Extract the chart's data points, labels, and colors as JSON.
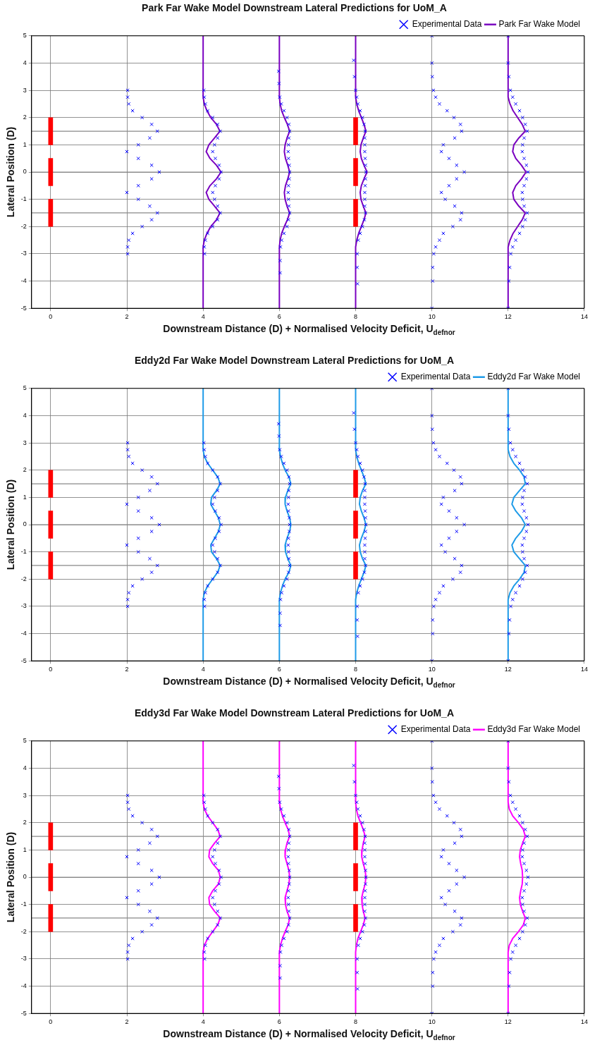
{
  "chart_data": [
    {
      "type": "scatter",
      "title": "Park Far Wake Model Downstream Lateral Predictions for UoM_A",
      "xlabel": "Downstream Distance (D) + Normalised Velocity Deficit, U$_{defnor}$",
      "ylabel": "Lateral Position (D)",
      "xlim": [
        -0.5,
        14
      ],
      "ylim": [
        -5,
        5
      ],
      "xticks": [
        0,
        2,
        4,
        6,
        8,
        10,
        12,
        14
      ],
      "yticks": [
        -5,
        -4,
        -3,
        -2,
        -1,
        0,
        1,
        2,
        3,
        4,
        5
      ],
      "grid": true,
      "legend": "top right",
      "ref_lines": [
        {
          "axis": "y",
          "value": 1.5,
          "color": "#888888"
        },
        {
          "axis": "y",
          "value": 0,
          "color": "#888888"
        },
        {
          "axis": "y",
          "value": -1.5,
          "color": "#888888"
        }
      ],
      "series": [
        {
          "type": "bar",
          "color": "#ff0000",
          "x": [
            0,
            8
          ],
          "base": [
            -2,
            -2
          ],
          "values": [
            1,
            1
          ]
        },
        {
          "type": "bar",
          "color": "#ff0000",
          "x": [
            0,
            8
          ],
          "base": [
            -0.5,
            -0.5
          ],
          "values": [
            1,
            1
          ]
        },
        {
          "type": "bar",
          "color": "#ff0000",
          "x": [
            0,
            8
          ],
          "base": [
            1,
            1
          ],
          "values": [
            1,
            1
          ]
        },
        {
          "name": "Experimental Data",
          "color": "#0000ff",
          "marker": "cross",
          "x": [
            2.02,
            2.02,
            2.05,
            2.15,
            2.4,
            2.65,
            2.8,
            2.6,
            2.3,
            2.0,
            2.3,
            2.65,
            2.85,
            2.65,
            2.3,
            2.0,
            2.3,
            2.6,
            2.8,
            2.65,
            2.4,
            2.15,
            2.05,
            2.02,
            2.02,
            4.02,
            4.03,
            4.06,
            4.12,
            4.25,
            4.38,
            4.45,
            4.38,
            4.3,
            4.25,
            4.32,
            4.42,
            4.47,
            4.42,
            4.32,
            4.25,
            4.3,
            4.38,
            4.45,
            4.38,
            4.25,
            4.12,
            4.06,
            4.03,
            4.04,
            5.98,
            5.99,
            6.01,
            6.05,
            6.12,
            6.2,
            6.25,
            6.27,
            6.25,
            6.24,
            6.23,
            6.24,
            6.26,
            6.27,
            6.26,
            6.24,
            6.23,
            6.24,
            6.25,
            6.27,
            6.24,
            6.2,
            6.12,
            6.06,
            6.03,
            6.02,
            6.02,
            7.95,
            7.97,
            8.0,
            8.03,
            8.06,
            8.12,
            8.18,
            8.22,
            8.25,
            8.24,
            8.24,
            8.24,
            8.25,
            8.26,
            8.27,
            8.26,
            8.25,
            8.24,
            8.24,
            8.24,
            8.26,
            8.23,
            8.18,
            8.12,
            8.07,
            8.04,
            8.04,
            8.05,
            10.0,
            10.0,
            10.01,
            10.04,
            10.1,
            10.2,
            10.4,
            10.58,
            10.75,
            10.78,
            10.6,
            10.3,
            10.25,
            10.45,
            10.65,
            10.85,
            10.65,
            10.45,
            10.25,
            10.35,
            10.6,
            10.78,
            10.75,
            10.55,
            10.3,
            10.2,
            10.1,
            10.05,
            10.02,
            10.02,
            10.0,
            12.0,
            12.0,
            12.02,
            12.06,
            12.12,
            12.2,
            12.3,
            12.38,
            12.45,
            12.5,
            12.42,
            12.38,
            12.37,
            12.42,
            12.48,
            12.52,
            12.48,
            12.42,
            12.37,
            12.38,
            12.42,
            12.5,
            12.45,
            12.38,
            12.3,
            12.2,
            12.12,
            12.07,
            12.04,
            12.02,
            12.0
          ],
          "values": [
            3,
            2.75,
            2.5,
            2.25,
            2,
            1.75,
            1.5,
            1.25,
            1,
            0.75,
            0.5,
            0.25,
            0,
            -0.25,
            -0.5,
            -0.75,
            -1,
            -1.25,
            -1.5,
            -1.75,
            -2,
            -2.25,
            -2.5,
            -2.75,
            -3,
            3,
            2.75,
            2.5,
            2.25,
            2,
            1.75,
            1.5,
            1.25,
            1,
            0.75,
            0.5,
            0.25,
            0,
            -0.25,
            -0.5,
            -0.75,
            -1,
            -1.25,
            -1.5,
            -1.75,
            -2,
            -2.25,
            -2.5,
            -2.75,
            -3,
            3.7,
            3.25,
            2.75,
            2.5,
            2.25,
            2,
            1.75,
            1.5,
            1.25,
            1,
            0.75,
            0.5,
            0.25,
            0,
            -0.25,
            -0.5,
            -0.75,
            -1,
            -1.25,
            -1.5,
            -1.75,
            -2,
            -2.25,
            -2.5,
            -2.75,
            -3.25,
            -3.7,
            4.1,
            3.5,
            3,
            2.75,
            2.5,
            2.25,
            2,
            1.75,
            1.5,
            1.25,
            1,
            0.75,
            0.5,
            0.25,
            0,
            -0.25,
            -0.5,
            -0.75,
            -1,
            -1.25,
            -1.5,
            -1.75,
            -2,
            -2.25,
            -2.5,
            -3,
            -3.5,
            -4.1,
            5,
            4,
            3.5,
            3,
            2.75,
            2.5,
            2.25,
            2,
            1.75,
            1.5,
            1.25,
            1,
            0.75,
            0.5,
            0.25,
            0,
            -0.25,
            -0.5,
            -0.75,
            -1,
            -1.25,
            -1.5,
            -1.75,
            -2,
            -2.25,
            -2.5,
            -2.75,
            -3,
            -3.5,
            -4,
            -5,
            5,
            4,
            3.5,
            3,
            2.75,
            2.5,
            2.25,
            2,
            1.75,
            1.5,
            1.25,
            1,
            0.75,
            0.5,
            0.25,
            0,
            -0.25,
            -0.5,
            -0.75,
            -1,
            -1.25,
            -1.5,
            -1.75,
            -2,
            -2.25,
            -2.5,
            -2.75,
            -3,
            -3.5,
            -4,
            -5
          ]
        },
        {
          "type": "line",
          "name": "Park Far Wake Model",
          "color": "#7a00c0",
          "marker": "none",
          "x": [
            4,
            4,
            4.03,
            4.1,
            4.2,
            4.35,
            4.44,
            4.3,
            4.15,
            4.08,
            4.18,
            4.35,
            4.47,
            4.35,
            4.18,
            4.08,
            4.15,
            4.3,
            4.44,
            4.35,
            4.2,
            4.1,
            4.03,
            4,
            4
          ],
          "values": [
            5,
            2.75,
            2.5,
            2.25,
            2,
            1.75,
            1.5,
            1.25,
            1,
            0.75,
            0.5,
            0.25,
            0,
            -0.25,
            -0.5,
            -0.75,
            -1,
            -1.25,
            -1.5,
            -1.75,
            -2,
            -2.25,
            -2.5,
            -2.75,
            -5
          ]
        },
        {
          "type": "line",
          "color": "#7a00c0",
          "marker": "none",
          "x": [
            6,
            6,
            6.02,
            6.06,
            6.13,
            6.21,
            6.27,
            6.2,
            6.15,
            6.13,
            6.16,
            6.22,
            6.27,
            6.22,
            6.16,
            6.13,
            6.15,
            6.2,
            6.27,
            6.21,
            6.13,
            6.06,
            6.02,
            6,
            6
          ],
          "values": [
            5,
            2.75,
            2.5,
            2.25,
            2,
            1.75,
            1.5,
            1.25,
            1,
            0.75,
            0.5,
            0.25,
            0,
            -0.25,
            -0.5,
            -0.75,
            -1,
            -1.25,
            -1.5,
            -1.75,
            -2,
            -2.25,
            -2.5,
            -2.75,
            -5
          ]
        },
        {
          "type": "line",
          "color": "#7a00c0",
          "marker": "none",
          "x": [
            8,
            8,
            8.03,
            8.08,
            8.15,
            8.22,
            8.27,
            8.2,
            8.14,
            8.12,
            8.15,
            8.22,
            8.3,
            8.22,
            8.15,
            8.12,
            8.14,
            8.2,
            8.27,
            8.22,
            8.15,
            8.08,
            8.03,
            8,
            8
          ],
          "values": [
            5,
            2.75,
            2.5,
            2.25,
            2,
            1.75,
            1.5,
            1.25,
            1,
            0.75,
            0.5,
            0.25,
            0,
            -0.25,
            -0.5,
            -0.75,
            -1,
            -1.25,
            -1.5,
            -1.75,
            -2,
            -2.25,
            -2.5,
            -2.75,
            -5
          ]
        },
        {
          "type": "line",
          "color": "#7a00c0",
          "marker": "none",
          "x": [
            12,
            12,
            12.05,
            12.13,
            12.25,
            12.37,
            12.45,
            12.28,
            12.15,
            12.12,
            12.2,
            12.35,
            12.47,
            12.35,
            12.2,
            12.12,
            12.15,
            12.28,
            12.45,
            12.37,
            12.25,
            12.13,
            12.05,
            12,
            12
          ],
          "values": [
            5,
            2.75,
            2.5,
            2.25,
            2,
            1.75,
            1.5,
            1.25,
            1,
            0.75,
            0.5,
            0.25,
            0,
            -0.25,
            -0.5,
            -0.75,
            -1,
            -1.25,
            -1.5,
            -1.75,
            -2,
            -2.25,
            -2.5,
            -2.75,
            -5
          ]
        }
      ]
    },
    {
      "type": "scatter",
      "title": "Eddy2d Far Wake Model Downstream Lateral Predictions for UoM_A",
      "xlabel": "Downstream Distance (D) + Normalised Velocity Deficit, U$_{defnor}$",
      "ylabel": "Lateral Position (D)",
      "xlim": [
        -0.5,
        14
      ],
      "ylim": [
        -5,
        5
      ],
      "xticks": [
        0,
        2,
        4,
        6,
        8,
        10,
        12,
        14
      ],
      "yticks": [
        -5,
        -4,
        -3,
        -2,
        -1,
        0,
        1,
        2,
        3,
        4,
        5
      ],
      "grid": true,
      "legend": "top right",
      "ref_lines": [
        {
          "axis": "y",
          "value": 1.5,
          "color": "#888888"
        },
        {
          "axis": "y",
          "value": 0,
          "color": "#888888"
        },
        {
          "axis": "y",
          "value": -1.5,
          "color": "#888888"
        }
      ],
      "series": [
        {
          "type": "bar",
          "color": "#ff0000",
          "x": [
            0,
            8
          ],
          "base": [
            -2,
            -2
          ],
          "values": [
            1,
            1
          ]
        },
        {
          "type": "bar",
          "color": "#ff0000",
          "x": [
            0,
            8
          ],
          "base": [
            -0.5,
            -0.5
          ],
          "values": [
            1,
            1
          ]
        },
        {
          "type": "bar",
          "color": "#ff0000",
          "x": [
            0,
            8
          ],
          "base": [
            1,
            1
          ],
          "values": [
            1,
            1
          ]
        },
        {
          "name": "Experimental Data",
          "color": "#0000ff",
          "marker": "cross",
          "x": [
            2.02,
            2.02,
            2.05,
            2.15,
            2.4,
            2.65,
            2.8,
            2.6,
            2.3,
            2.0,
            2.3,
            2.65,
            2.85,
            2.65,
            2.3,
            2.0,
            2.3,
            2.6,
            2.8,
            2.65,
            2.4,
            2.15,
            2.05,
            2.02,
            2.02,
            4.02,
            4.03,
            4.06,
            4.12,
            4.25,
            4.38,
            4.45,
            4.38,
            4.3,
            4.25,
            4.32,
            4.42,
            4.47,
            4.42,
            4.32,
            4.25,
            4.3,
            4.38,
            4.45,
            4.38,
            4.25,
            4.12,
            4.06,
            4.03,
            4.04,
            5.98,
            5.99,
            6.01,
            6.05,
            6.12,
            6.2,
            6.25,
            6.27,
            6.25,
            6.24,
            6.23,
            6.24,
            6.26,
            6.27,
            6.26,
            6.24,
            6.23,
            6.24,
            6.25,
            6.27,
            6.24,
            6.2,
            6.12,
            6.06,
            6.03,
            6.02,
            6.02,
            7.95,
            7.97,
            8.0,
            8.03,
            8.06,
            8.12,
            8.18,
            8.22,
            8.25,
            8.24,
            8.24,
            8.24,
            8.25,
            8.26,
            8.27,
            8.26,
            8.25,
            8.24,
            8.24,
            8.24,
            8.26,
            8.23,
            8.18,
            8.12,
            8.07,
            8.04,
            8.04,
            8.05,
            10.0,
            10.0,
            10.01,
            10.04,
            10.1,
            10.2,
            10.4,
            10.58,
            10.75,
            10.78,
            10.6,
            10.3,
            10.25,
            10.45,
            10.65,
            10.85,
            10.65,
            10.45,
            10.25,
            10.35,
            10.6,
            10.78,
            10.75,
            10.55,
            10.3,
            10.2,
            10.1,
            10.05,
            10.02,
            10.02,
            10.0,
            12.0,
            12.0,
            12.02,
            12.06,
            12.12,
            12.2,
            12.3,
            12.38,
            12.45,
            12.5,
            12.42,
            12.38,
            12.37,
            12.42,
            12.48,
            12.52,
            12.48,
            12.42,
            12.37,
            12.38,
            12.42,
            12.5,
            12.45,
            12.38,
            12.3,
            12.2,
            12.12,
            12.07,
            12.04,
            12.02,
            12.0
          ],
          "values": [
            3,
            2.75,
            2.5,
            2.25,
            2,
            1.75,
            1.5,
            1.25,
            1,
            0.75,
            0.5,
            0.25,
            0,
            -0.25,
            -0.5,
            -0.75,
            -1,
            -1.25,
            -1.5,
            -1.75,
            -2,
            -2.25,
            -2.5,
            -2.75,
            -3,
            3,
            2.75,
            2.5,
            2.25,
            2,
            1.75,
            1.5,
            1.25,
            1,
            0.75,
            0.5,
            0.25,
            0,
            -0.25,
            -0.5,
            -0.75,
            -1,
            -1.25,
            -1.5,
            -1.75,
            -2,
            -2.25,
            -2.5,
            -2.75,
            -3,
            3.7,
            3.25,
            2.75,
            2.5,
            2.25,
            2,
            1.75,
            1.5,
            1.25,
            1,
            0.75,
            0.5,
            0.25,
            0,
            -0.25,
            -0.5,
            -0.75,
            -1,
            -1.25,
            -1.5,
            -1.75,
            -2,
            -2.25,
            -2.5,
            -2.75,
            -3.25,
            -3.7,
            4.1,
            3.5,
            3,
            2.75,
            2.5,
            2.25,
            2,
            1.75,
            1.5,
            1.25,
            1,
            0.75,
            0.5,
            0.25,
            0,
            -0.25,
            -0.5,
            -0.75,
            -1,
            -1.25,
            -1.5,
            -1.75,
            -2,
            -2.25,
            -2.5,
            -3,
            -3.5,
            -4.1,
            5,
            4,
            3.5,
            3,
            2.75,
            2.5,
            2.25,
            2,
            1.75,
            1.5,
            1.25,
            1,
            0.75,
            0.5,
            0.25,
            0,
            -0.25,
            -0.5,
            -0.75,
            -1,
            -1.25,
            -1.5,
            -1.75,
            -2,
            -2.25,
            -2.5,
            -2.75,
            -3,
            -3.5,
            -4,
            -5,
            5,
            4,
            3.5,
            3,
            2.75,
            2.5,
            2.25,
            2,
            1.75,
            1.5,
            1.25,
            1,
            0.75,
            0.5,
            0.25,
            0,
            -0.25,
            -0.5,
            -0.75,
            -1,
            -1.25,
            -1.5,
            -1.75,
            -2,
            -2.25,
            -2.5,
            -2.75,
            -3,
            -3.5,
            -4,
            -5
          ]
        },
        {
          "type": "line",
          "name": "Eddy2d Far Wake Model",
          "color": "#1e9be8",
          "marker": "none",
          "x": [
            4,
            4,
            4.03,
            4.12,
            4.25,
            4.38,
            4.45,
            4.35,
            4.22,
            4.2,
            4.3,
            4.4,
            4.45,
            4.4,
            4.3,
            4.2,
            4.22,
            4.35,
            4.45,
            4.38,
            4.25,
            4.12,
            4.03,
            4,
            4
          ],
          "values": [
            5,
            2.75,
            2.5,
            2.25,
            2,
            1.75,
            1.5,
            1.25,
            1,
            0.75,
            0.5,
            0.25,
            0,
            -0.25,
            -0.5,
            -0.75,
            -1,
            -1.25,
            -1.5,
            -1.75,
            -2,
            -2.25,
            -2.5,
            -2.75,
            -5
          ]
        },
        {
          "type": "line",
          "color": "#1e9be8",
          "marker": "none",
          "x": [
            6,
            6,
            6.03,
            6.08,
            6.15,
            6.25,
            6.3,
            6.22,
            6.16,
            6.15,
            6.2,
            6.27,
            6.3,
            6.27,
            6.2,
            6.15,
            6.16,
            6.22,
            6.3,
            6.25,
            6.15,
            6.08,
            6.03,
            6,
            6
          ],
          "values": [
            5,
            2.75,
            2.5,
            2.25,
            2,
            1.75,
            1.5,
            1.25,
            1,
            0.75,
            0.5,
            0.25,
            0,
            -0.25,
            -0.5,
            -0.75,
            -1,
            -1.25,
            -1.5,
            -1.75,
            -2,
            -2.25,
            -2.5,
            -2.75,
            -5
          ]
        },
        {
          "type": "line",
          "color": "#1e9be8",
          "marker": "none",
          "x": [
            8,
            8,
            8.03,
            8.08,
            8.15,
            8.22,
            8.27,
            8.18,
            8.12,
            8.1,
            8.15,
            8.22,
            8.27,
            8.22,
            8.15,
            8.1,
            8.12,
            8.18,
            8.27,
            8.22,
            8.15,
            8.08,
            8.03,
            8,
            8
          ],
          "values": [
            5,
            2.75,
            2.5,
            2.25,
            2,
            1.75,
            1.5,
            1.25,
            1,
            0.75,
            0.5,
            0.25,
            0,
            -0.25,
            -0.5,
            -0.75,
            -1,
            -1.25,
            -1.5,
            -1.75,
            -2,
            -2.25,
            -2.5,
            -2.75,
            -5
          ]
        },
        {
          "type": "line",
          "color": "#1e9be8",
          "marker": "none",
          "x": [
            12,
            12,
            12.05,
            12.15,
            12.3,
            12.42,
            12.45,
            12.3,
            12.15,
            12.1,
            12.2,
            12.35,
            12.45,
            12.35,
            12.2,
            12.1,
            12.15,
            12.3,
            12.45,
            12.42,
            12.3,
            12.15,
            12.05,
            12,
            12
          ],
          "values": [
            5,
            2.75,
            2.5,
            2.25,
            2,
            1.75,
            1.5,
            1.25,
            1,
            0.75,
            0.5,
            0.25,
            0,
            -0.25,
            -0.5,
            -0.75,
            -1,
            -1.25,
            -1.5,
            -1.75,
            -2,
            -2.25,
            -2.5,
            -2.75,
            -5
          ]
        }
      ]
    },
    {
      "type": "scatter",
      "title": "Eddy3d Far Wake Model Downstream Lateral Predictions for UoM_A",
      "xlabel": "Downstream Distance (D) + Normalised Velocity Deficit, U$_{defnor}$",
      "ylabel": "Lateral Position (D)",
      "xlim": [
        -0.5,
        14
      ],
      "ylim": [
        -5,
        5
      ],
      "xticks": [
        0,
        2,
        4,
        6,
        8,
        10,
        12,
        14
      ],
      "yticks": [
        -5,
        -4,
        -3,
        -2,
        -1,
        0,
        1,
        2,
        3,
        4,
        5
      ],
      "grid": true,
      "legend": "top right",
      "ref_lines": [
        {
          "axis": "y",
          "value": 1.5,
          "color": "#888888"
        },
        {
          "axis": "y",
          "value": 0,
          "color": "#888888"
        },
        {
          "axis": "y",
          "value": -1.5,
          "color": "#888888"
        }
      ],
      "series": [
        {
          "type": "bar",
          "color": "#ff0000",
          "x": [
            0,
            8
          ],
          "base": [
            -2,
            -2
          ],
          "values": [
            1,
            1
          ]
        },
        {
          "type": "bar",
          "color": "#ff0000",
          "x": [
            0,
            8
          ],
          "base": [
            -0.5,
            -0.5
          ],
          "values": [
            1,
            1
          ]
        },
        {
          "type": "bar",
          "color": "#ff0000",
          "x": [
            0,
            8
          ],
          "base": [
            1,
            1
          ],
          "values": [
            1,
            1
          ]
        },
        {
          "name": "Experimental Data",
          "color": "#0000ff",
          "marker": "cross",
          "x": [
            2.02,
            2.02,
            2.05,
            2.15,
            2.4,
            2.65,
            2.8,
            2.6,
            2.3,
            2.0,
            2.3,
            2.65,
            2.85,
            2.65,
            2.3,
            2.0,
            2.3,
            2.6,
            2.8,
            2.65,
            2.4,
            2.15,
            2.05,
            2.02,
            2.02,
            4.02,
            4.03,
            4.06,
            4.12,
            4.25,
            4.38,
            4.45,
            4.38,
            4.3,
            4.25,
            4.32,
            4.42,
            4.47,
            4.42,
            4.32,
            4.25,
            4.3,
            4.38,
            4.45,
            4.38,
            4.25,
            4.12,
            4.06,
            4.03,
            4.04,
            5.98,
            5.99,
            6.01,
            6.05,
            6.12,
            6.2,
            6.25,
            6.27,
            6.25,
            6.24,
            6.23,
            6.24,
            6.26,
            6.27,
            6.26,
            6.24,
            6.23,
            6.24,
            6.25,
            6.27,
            6.24,
            6.2,
            6.12,
            6.06,
            6.03,
            6.02,
            6.02,
            7.95,
            7.97,
            8.0,
            8.03,
            8.06,
            8.12,
            8.18,
            8.22,
            8.25,
            8.24,
            8.24,
            8.24,
            8.25,
            8.26,
            8.27,
            8.26,
            8.25,
            8.24,
            8.24,
            8.24,
            8.26,
            8.23,
            8.18,
            8.12,
            8.07,
            8.04,
            8.04,
            8.05,
            10.0,
            10.0,
            10.01,
            10.04,
            10.1,
            10.2,
            10.4,
            10.58,
            10.75,
            10.78,
            10.6,
            10.3,
            10.25,
            10.45,
            10.65,
            10.85,
            10.65,
            10.45,
            10.25,
            10.35,
            10.6,
            10.78,
            10.75,
            10.55,
            10.3,
            10.2,
            10.1,
            10.05,
            10.02,
            10.02,
            10.0,
            12.0,
            12.0,
            12.02,
            12.06,
            12.12,
            12.2,
            12.3,
            12.38,
            12.45,
            12.5,
            12.42,
            12.38,
            12.37,
            12.42,
            12.48,
            12.52,
            12.48,
            12.42,
            12.37,
            12.38,
            12.42,
            12.5,
            12.45,
            12.38,
            12.3,
            12.2,
            12.12,
            12.07,
            12.04,
            12.02,
            12.0
          ],
          "values": [
            3,
            2.75,
            2.5,
            2.25,
            2,
            1.75,
            1.5,
            1.25,
            1,
            0.75,
            0.5,
            0.25,
            0,
            -0.25,
            -0.5,
            -0.75,
            -1,
            -1.25,
            -1.5,
            -1.75,
            -2,
            -2.25,
            -2.5,
            -2.75,
            -3,
            3,
            2.75,
            2.5,
            2.25,
            2,
            1.75,
            1.5,
            1.25,
            1,
            0.75,
            0.5,
            0.25,
            0,
            -0.25,
            -0.5,
            -0.75,
            -1,
            -1.25,
            -1.5,
            -1.75,
            -2,
            -2.25,
            -2.5,
            -2.75,
            -3,
            3.7,
            3.25,
            2.75,
            2.5,
            2.25,
            2,
            1.75,
            1.5,
            1.25,
            1,
            0.75,
            0.5,
            0.25,
            0,
            -0.25,
            -0.5,
            -0.75,
            -1,
            -1.25,
            -1.5,
            -1.75,
            -2,
            -2.25,
            -2.5,
            -2.75,
            -3.25,
            -3.7,
            4.1,
            3.5,
            3,
            2.75,
            2.5,
            2.25,
            2,
            1.75,
            1.5,
            1.25,
            1,
            0.75,
            0.5,
            0.25,
            0,
            -0.25,
            -0.5,
            -0.75,
            -1,
            -1.25,
            -1.5,
            -1.75,
            -2,
            -2.25,
            -2.5,
            -3,
            -3.5,
            -4.1,
            5,
            4,
            3.5,
            3,
            2.75,
            2.5,
            2.25,
            2,
            1.75,
            1.5,
            1.25,
            1,
            0.75,
            0.5,
            0.25,
            0,
            -0.25,
            -0.5,
            -0.75,
            -1,
            -1.25,
            -1.5,
            -1.75,
            -2,
            -2.25,
            -2.5,
            -2.75,
            -3,
            -3.5,
            -4,
            -5,
            5,
            4,
            3.5,
            3,
            2.75,
            2.5,
            2.25,
            2,
            1.75,
            1.5,
            1.25,
            1,
            0.75,
            0.5,
            0.25,
            0,
            -0.25,
            -0.5,
            -0.75,
            -1,
            -1.25,
            -1.5,
            -1.75,
            -2,
            -2.25,
            -2.5,
            -2.75,
            -3,
            -3.5,
            -4,
            -5
          ]
        },
        {
          "type": "line",
          "name": "Eddy3d Far Wake Model",
          "color": "#ff00ff",
          "marker": "none",
          "x": [
            4,
            4,
            4.03,
            4.12,
            4.25,
            4.38,
            4.45,
            4.3,
            4.17,
            4.15,
            4.25,
            4.4,
            4.45,
            4.4,
            4.25,
            4.15,
            4.17,
            4.3,
            4.45,
            4.38,
            4.25,
            4.12,
            4.03,
            4,
            4
          ],
          "values": [
            5,
            2.75,
            2.5,
            2.25,
            2,
            1.75,
            1.5,
            1.25,
            1,
            0.75,
            0.5,
            0.25,
            0,
            -0.25,
            -0.5,
            -0.75,
            -1,
            -1.25,
            -1.5,
            -1.75,
            -2,
            -2.25,
            -2.5,
            -2.75,
            -5
          ]
        },
        {
          "type": "line",
          "color": "#ff00ff",
          "marker": "none",
          "x": [
            6,
            6,
            6.03,
            6.08,
            6.15,
            6.23,
            6.27,
            6.2,
            6.16,
            6.15,
            6.2,
            6.25,
            6.27,
            6.25,
            6.2,
            6.15,
            6.16,
            6.2,
            6.27,
            6.23,
            6.15,
            6.08,
            6.03,
            6,
            6
          ],
          "values": [
            5,
            2.75,
            2.5,
            2.25,
            2,
            1.75,
            1.5,
            1.25,
            1,
            0.75,
            0.5,
            0.25,
            0,
            -0.25,
            -0.5,
            -0.75,
            -1,
            -1.25,
            -1.5,
            -1.75,
            -2,
            -2.25,
            -2.5,
            -2.75,
            -5
          ]
        },
        {
          "type": "line",
          "color": "#ff00ff",
          "marker": "none",
          "x": [
            8,
            8,
            8.02,
            8.06,
            8.13,
            8.2,
            8.25,
            8.2,
            8.17,
            8.16,
            8.2,
            8.25,
            8.27,
            8.25,
            8.2,
            8.16,
            8.17,
            8.2,
            8.25,
            8.2,
            8.13,
            8.06,
            8.02,
            8,
            8
          ],
          "values": [
            5,
            2.75,
            2.5,
            2.25,
            2,
            1.75,
            1.5,
            1.25,
            1,
            0.75,
            0.5,
            0.25,
            0,
            -0.25,
            -0.5,
            -0.75,
            -1,
            -1.25,
            -1.5,
            -1.75,
            -2,
            -2.25,
            -2.5,
            -2.75,
            -5
          ]
        },
        {
          "type": "line",
          "color": "#ff00ff",
          "marker": "none",
          "x": [
            12,
            12,
            12.03,
            12.12,
            12.27,
            12.4,
            12.45,
            12.38,
            12.32,
            12.3,
            12.33,
            12.37,
            12.38,
            12.37,
            12.33,
            12.3,
            12.32,
            12.38,
            12.45,
            12.4,
            12.27,
            12.12,
            12.03,
            12,
            12
          ],
          "values": [
            5,
            2.75,
            2.5,
            2.25,
            2,
            1.75,
            1.5,
            1.25,
            1,
            0.75,
            0.5,
            0.25,
            0,
            -0.25,
            -0.5,
            -0.75,
            -1,
            -1.25,
            -1.5,
            -1.75,
            -2,
            -2.25,
            -2.5,
            -2.75,
            -5
          ]
        }
      ]
    }
  ]
}
